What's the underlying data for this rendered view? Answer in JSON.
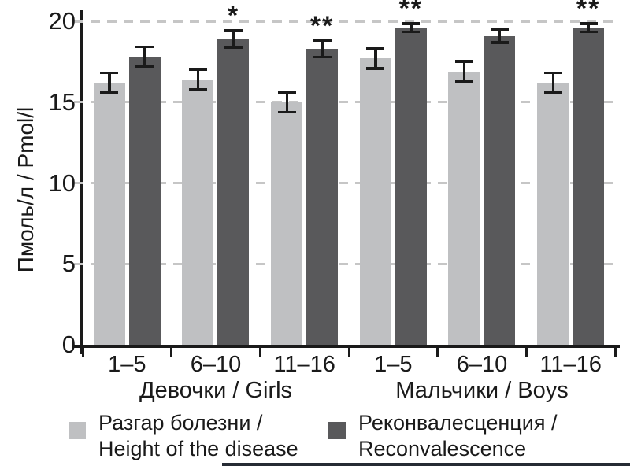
{
  "chart_data": {
    "type": "bar",
    "title": "",
    "ylabel": "Пмоль/л / Pmol/l",
    "xlabel": "",
    "ylim": [
      0,
      20
    ],
    "yticks": [
      0,
      5,
      10,
      15,
      20
    ],
    "grid": "horizontal dashed gridlines at 5, 10, 15, 20",
    "legend_position": "bottom",
    "categories": [
      "1–5",
      "6–10",
      "11–16",
      "1–5",
      "6–10",
      "11–16"
    ],
    "category_groups": [
      {
        "label": "Девочки / Girls",
        "span": [
          0,
          2
        ]
      },
      {
        "label": "Мальчики / Boys",
        "span": [
          3,
          5
        ]
      }
    ],
    "series": [
      {
        "name": "Разгар болезни / Height of the disease",
        "color": "#bfc0c2",
        "values": [
          16.2,
          16.4,
          15.0,
          17.7,
          16.9,
          16.2
        ],
        "errors": [
          0.7,
          0.7,
          0.7,
          0.7,
          0.7,
          0.7
        ]
      },
      {
        "name": "Реконвалесценция / Reconvalescence",
        "color": "#59595b",
        "values": [
          17.8,
          18.9,
          18.3,
          19.6,
          19.1,
          19.6
        ],
        "errors": [
          0.7,
          0.6,
          0.6,
          0.35,
          0.5,
          0.35
        ]
      }
    ],
    "significance": {
      "applies_to_series": "Реконвалесценция / Reconvalescence",
      "labels": [
        "",
        "*",
        "**",
        "**",
        "",
        "**"
      ]
    },
    "legend": {
      "entries": [
        {
          "swatch_color": "#bfc0c2",
          "line1": "Разгар болезни /",
          "line2": "Height of the disease"
        },
        {
          "swatch_color": "#59595b",
          "line1": "Реконвалесценция /",
          "line2": "Reconvalescence"
        }
      ]
    },
    "colors": {
      "axis": "#1a1a1a",
      "gridline": "#c6c6c6",
      "text": "#1a1a1a",
      "bottom_edge_artifact": "#262b34"
    }
  }
}
